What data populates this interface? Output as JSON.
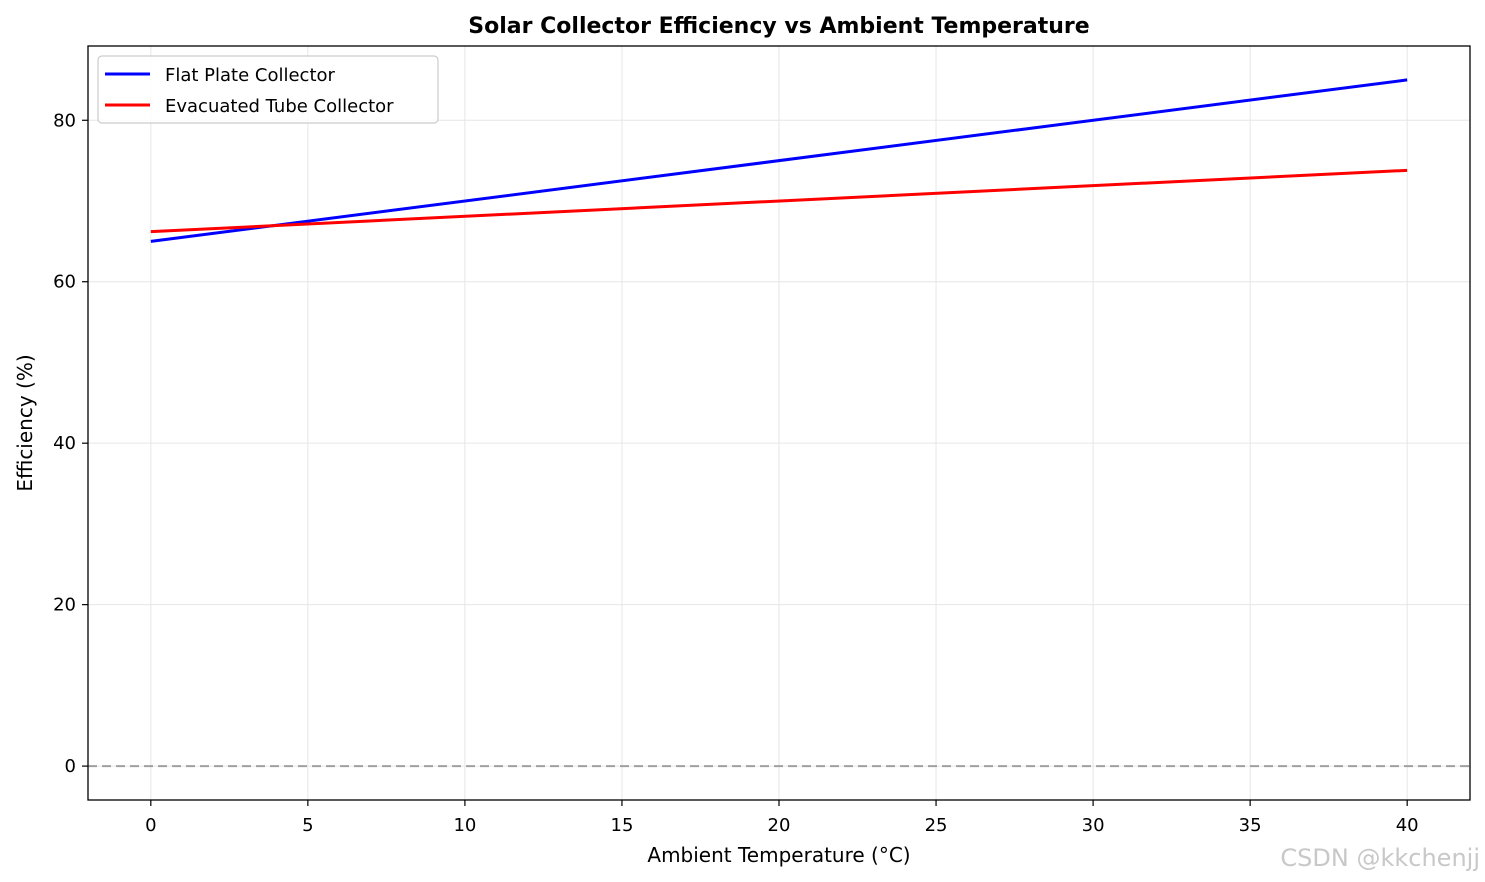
{
  "colors": {
    "flat_plate": "#0000ff",
    "evacuated_tube": "#ff0000",
    "reference_line": "#a0a0a0",
    "grid": "#e6e6e6"
  },
  "watermark": "CSDN @kkchenjj",
  "chart_data": {
    "type": "line",
    "title": "Solar Collector Efficiency vs Ambient Temperature",
    "xlabel": "Ambient Temperature (°C)",
    "ylabel": "Efficiency (%)",
    "xlim": [
      -2,
      42
    ],
    "ylim": [
      -4.2,
      89.2
    ],
    "xticks": [
      0,
      5,
      10,
      15,
      20,
      25,
      30,
      35,
      40
    ],
    "yticks": [
      0,
      20,
      40,
      60,
      80
    ],
    "grid": true,
    "legend_position": "top-left",
    "reference_line": {
      "y": 0,
      "style": "dashed"
    },
    "x": [
      0,
      40
    ],
    "series": [
      {
        "name": "Flat Plate Collector",
        "color": "#0000ff",
        "values": [
          65.0,
          85.0
        ]
      },
      {
        "name": "Evacuated Tube Collector",
        "color": "#ff0000",
        "values": [
          66.2,
          73.8
        ]
      }
    ]
  }
}
